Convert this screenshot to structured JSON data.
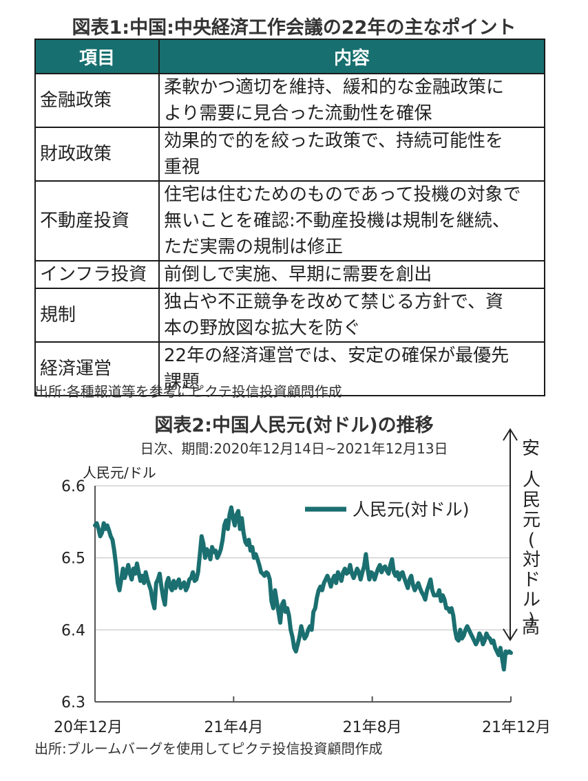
{
  "table": {
    "title": "図表1:中国:中央経済工作会議の22年の主なポイント",
    "headers": [
      "項目",
      "内容"
    ],
    "rows": [
      {
        "item": "金融政策",
        "content": [
          "柔軟かつ適切を維持、緩和的な金融政策に",
          "より需要に見合った流動性を確保"
        ]
      },
      {
        "item": "財政政策",
        "content": [
          "効果的で的を絞った政策で、持続可能性を",
          "重視"
        ]
      },
      {
        "item": "不動産投資",
        "content": [
          "住宅は住むためのものであって投機の対象で",
          "無いことを確認:不動産投機は規制を継続、",
          "ただ実需の規制は修正"
        ]
      },
      {
        "item": "インフラ投資",
        "content": [
          "前倒しで実施、早期に需要を創出"
        ]
      },
      {
        "item": "規制",
        "content": [
          "独占や不正競争を改めて禁じる方針で、資",
          "本の野放図な拡大を防ぐ"
        ]
      },
      {
        "item": "経済運営",
        "content": [
          "22年の経済運営では、安定の確保が最優先",
          "課題"
        ]
      }
    ],
    "source": "出所:各種報道等を参考にピクテ投信投資顧問作成"
  },
  "chart": {
    "title": "図表2:中国人民元(対ドル)の推移",
    "subtitle": "日次、期間:2020年12月14日~2021年12月13日",
    "source": "出所:ブルームバーグを使用してピクテ投信投資顧問作成",
    "side_top": "安",
    "side_bottom": "高",
    "side_middle": [
      "人",
      "民",
      "元",
      "(",
      "対",
      "ド",
      "ル",
      ")"
    ]
  },
  "chart_data": {
    "type": "line",
    "ylabel": "人民元/ドル",
    "ylim": [
      6.3,
      6.6
    ],
    "yticks": [
      "6.3",
      "6.4",
      "6.5",
      "6.6"
    ],
    "xticks": [
      "20年12月",
      "21年4月",
      "21年8月",
      "21年12月"
    ],
    "grid": "horizontal",
    "legend": "top-right",
    "color": "#1b6f70",
    "series": [
      {
        "name": "人民元(対ドル)",
        "values": [
          6.545,
          6.548,
          6.54,
          6.53,
          6.535,
          6.548,
          6.54,
          6.545,
          6.538,
          6.53,
          6.525,
          6.51,
          6.49,
          6.465,
          6.455,
          6.47,
          6.485,
          6.472,
          6.48,
          6.49,
          6.478,
          6.47,
          6.485,
          6.478,
          6.492,
          6.48,
          6.468,
          6.475,
          6.465,
          6.48,
          6.47,
          6.462,
          6.455,
          6.44,
          6.43,
          6.465,
          6.47,
          6.478,
          6.46,
          6.445,
          6.435,
          6.465,
          6.472,
          6.46,
          6.455,
          6.468,
          6.458,
          6.465,
          6.47,
          6.458,
          6.462,
          6.466,
          6.455,
          6.46,
          6.47,
          6.472,
          6.48,
          6.468,
          6.47,
          6.48,
          6.505,
          6.53,
          6.52,
          6.5,
          6.512,
          6.508,
          6.498,
          6.515,
          6.508,
          6.51,
          6.5,
          6.505,
          6.512,
          6.525,
          6.545,
          6.552,
          6.54,
          6.56,
          6.57,
          6.555,
          6.545,
          6.56,
          6.565,
          6.54,
          6.555,
          6.535,
          6.522,
          6.518,
          6.525,
          6.51,
          6.515,
          6.5,
          6.505,
          6.498,
          6.49,
          6.48,
          6.478,
          6.475,
          6.48,
          6.478,
          6.47,
          6.44,
          6.43,
          6.455,
          6.44,
          6.425,
          6.41,
          6.435,
          6.44,
          6.425,
          6.43,
          6.42,
          6.4,
          6.39,
          6.375,
          6.37,
          6.38,
          6.39,
          6.405,
          6.395,
          6.388,
          6.392,
          6.4,
          6.405,
          6.4,
          6.425,
          6.43,
          6.445,
          6.455,
          6.46,
          6.455,
          6.465,
          6.47,
          6.475,
          6.468,
          6.46,
          6.47,
          6.475,
          6.465,
          6.48,
          6.475,
          6.468,
          6.48,
          6.485,
          6.478,
          6.48,
          6.49,
          6.478,
          6.472,
          6.478,
          6.485,
          6.48,
          6.47,
          6.48,
          6.488,
          6.505,
          6.485,
          6.47,
          6.48,
          6.478,
          6.47,
          6.478,
          6.485,
          6.49,
          6.48,
          6.486,
          6.488,
          6.482,
          6.478,
          6.49,
          6.498,
          6.48,
          6.475,
          6.48,
          6.47,
          6.478,
          6.48,
          6.472,
          6.465,
          6.458,
          6.47,
          6.475,
          6.462,
          6.455,
          6.46,
          6.465,
          6.458,
          6.452,
          6.448,
          6.442,
          6.455,
          6.462,
          6.47,
          6.455,
          6.448,
          6.448,
          6.448,
          6.455,
          6.44,
          6.448,
          6.442,
          6.43,
          6.43,
          6.425,
          6.43,
          6.42,
          6.4,
          6.388,
          6.385,
          6.4,
          6.388,
          6.392,
          6.4,
          6.405,
          6.4,
          6.395,
          6.39,
          6.385,
          6.38,
          6.385,
          6.395,
          6.39,
          6.38,
          6.385,
          6.395,
          6.39,
          6.388,
          6.382,
          6.385,
          6.375,
          6.37,
          6.365,
          6.375,
          6.36,
          6.345,
          6.37,
          6.368,
          6.37,
          6.368
        ]
      }
    ]
  }
}
